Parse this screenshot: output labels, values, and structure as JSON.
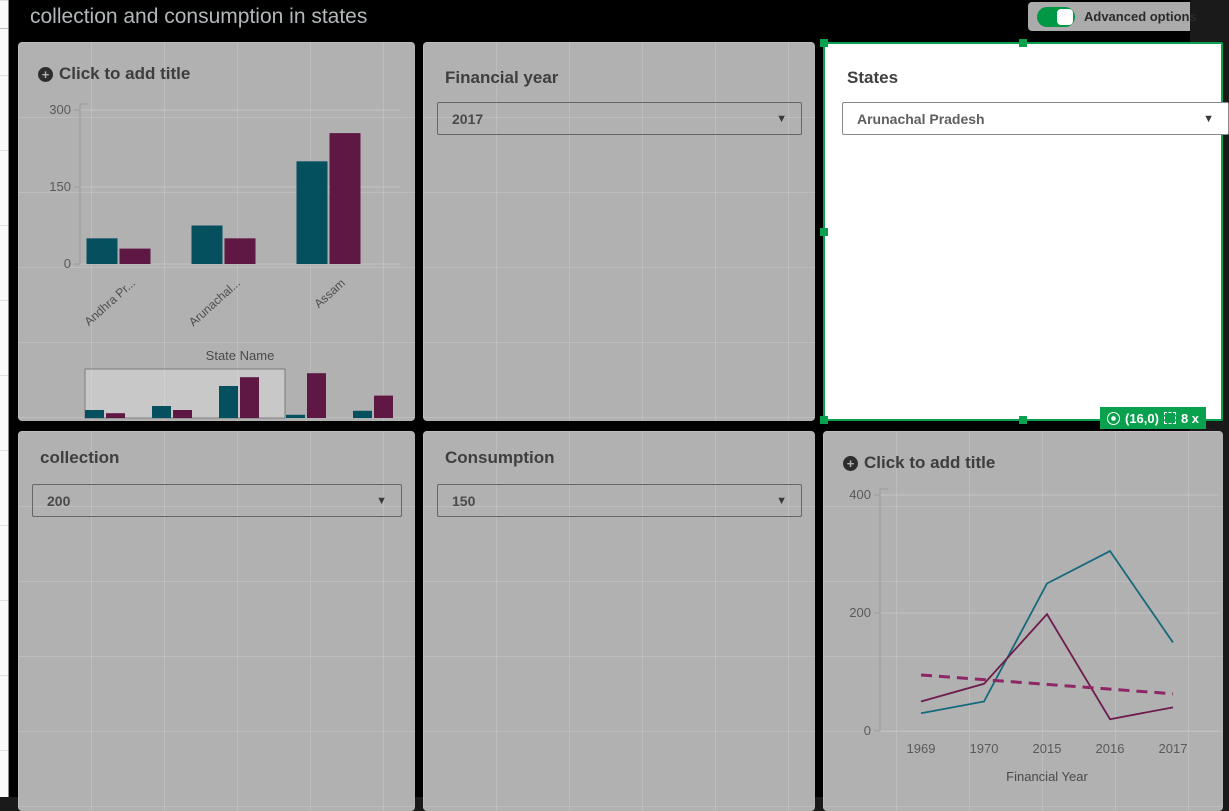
{
  "topbar": {
    "title": "collection and consumption in states",
    "advanced_option_label": "Advanced options",
    "advanced_option_on": true
  },
  "icons": {
    "add": "+",
    "dropdown": "▼"
  },
  "colors": {
    "selection_green": "#0aa14e",
    "toggle_green": "#009845",
    "bar_teal": "#05505f",
    "bar_maroon": "#5e1843",
    "line_teal": "#16697d",
    "line_maroon": "#6d1c4e",
    "trend_maroon": "#8e2566"
  },
  "panels": {
    "bar": {
      "add_title": "Click to add title"
    },
    "financial_year": {
      "title": "Financial year",
      "value": "2017"
    },
    "states": {
      "title": "States",
      "value": "Arunachal Pradesh",
      "badge": {
        "coords": "(16,0)",
        "size": "8 x"
      }
    },
    "collection": {
      "title": "collection",
      "value": "200"
    },
    "consumption": {
      "title": "Consumption",
      "value": "150"
    },
    "line": {
      "add_title": "Click to add title"
    }
  },
  "chart_data": [
    {
      "id": "state-bars",
      "type": "bar",
      "categories": [
        "Andhra Pr...",
        "Arunachal...",
        "Assam"
      ],
      "series": [
        {
          "name": "series-1",
          "color": "#05505f",
          "values": [
            50,
            75,
            200
          ]
        },
        {
          "name": "series-2",
          "color": "#5e1843",
          "values": [
            30,
            50,
            255
          ]
        }
      ],
      "xlabel": "State Name",
      "ylabel": "",
      "yticks": [
        0,
        150,
        300
      ],
      "ylim": [
        0,
        300
      ],
      "legend": false
    },
    {
      "id": "state-bars-minimap",
      "type": "bar",
      "categories": [
        "",
        "",
        "",
        "",
        ""
      ],
      "series": [
        {
          "name": "series-1",
          "color": "#05505f",
          "values": [
            50,
            75,
            200,
            20,
            45
          ]
        },
        {
          "name": "series-2",
          "color": "#5e1843",
          "values": [
            30,
            50,
            255,
            280,
            140
          ]
        }
      ],
      "ylim": [
        0,
        300
      ],
      "window": {
        "start_group": 0,
        "group_count": 3
      }
    },
    {
      "id": "year-lines",
      "type": "line",
      "x": [
        "1969",
        "1970",
        "2015",
        "2016",
        "2017"
      ],
      "series": [
        {
          "name": "line-teal",
          "color": "#16697d",
          "style": "solid",
          "values": [
            30,
            50,
            250,
            305,
            150
          ]
        },
        {
          "name": "line-maroon",
          "color": "#6d1c4e",
          "style": "solid",
          "values": [
            50,
            80,
            198,
            20,
            40
          ]
        },
        {
          "name": "trend-dashed",
          "color": "#8e2566",
          "style": "dashed",
          "values": [
            95,
            87,
            79,
            71,
            63
          ]
        }
      ],
      "xlabel": "Financial Year",
      "ylabel": "",
      "yticks": [
        0,
        200,
        400
      ],
      "ylim": [
        0,
        400
      ],
      "legend": false
    }
  ]
}
